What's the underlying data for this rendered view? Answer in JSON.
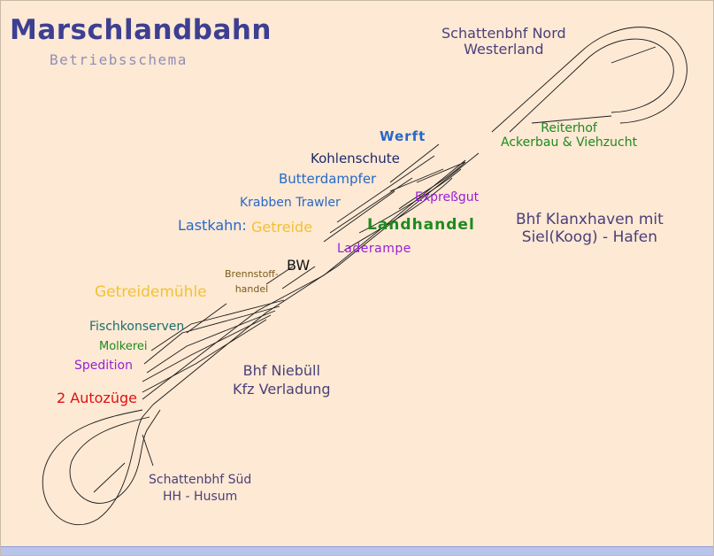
{
  "title": "Marschlandbahn",
  "subtitle": "Betriebsschema",
  "colors": {
    "background": "#fde9d4",
    "title": "#3d3f92",
    "station_label": "#4a3f7a",
    "blue": "#2668c8",
    "dark_navy": "#1e2a6a",
    "green": "#1e8a1e",
    "purple": "#9a1ed8",
    "yellow": "#f2c231",
    "teal": "#1a6e6e",
    "red": "#e01010",
    "olive": "#7a5a1a",
    "black": "#111111"
  },
  "labels": {
    "schattenbhf_nord_1": "Schattenbhf Nord",
    "schattenbhf_nord_2": "Westerland",
    "reiterhof_1": "Reiterhof",
    "reiterhof_2": "Ackerbau & Viehzucht",
    "werft": "Werft",
    "kohlenschute": "Kohlenschute",
    "butterdampfer": "Butterdampfer",
    "krabben_trawler": "Krabben Trawler",
    "lastkahn": "Lastkahn:",
    "getreide": "Getreide",
    "expressgut": "Expreßgut",
    "landhandel": "Landhandel",
    "laderampe": "Laderampe",
    "klanxhaven_1": "Bhf Klanxhaven mit",
    "klanxhaven_2": "Siel(Koog) - Hafen",
    "bw": "BW",
    "brennstoff_1": "Brennstoff-",
    "brennstoff_2": "handel",
    "getreidemuehle": "Getreidemühle",
    "fischkonserven": "Fischkonserven",
    "molkerei": "Molkerei",
    "spedition": "Spedition",
    "autozuege": "2 Autozüge",
    "niebuell_1": "Bhf Niebüll",
    "niebuell_2": "Kfz Verladung",
    "schattenbhf_sued_1": "Schattenbhf Süd",
    "schattenbhf_sued_2": "HH - Husum"
  }
}
